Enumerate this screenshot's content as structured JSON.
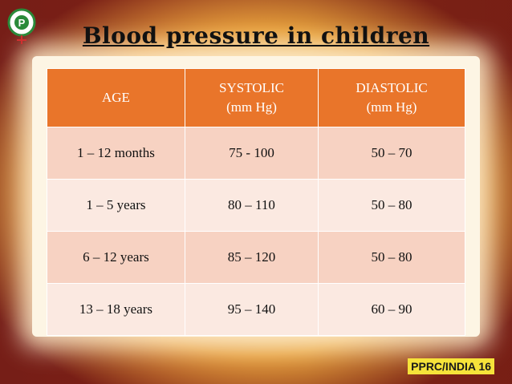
{
  "header": {
    "title": "Blood pressure in children"
  },
  "table": {
    "header": [
      [
        "AGE"
      ],
      [
        "SYSTOLIC",
        "(mm Hg)"
      ],
      [
        "DIASTOLIC",
        "(mm Hg)"
      ]
    ],
    "rows": [
      [
        "1 – 12 months",
        "75 - 100",
        "50 – 70"
      ],
      [
        "1 – 5 years",
        "80 – 110",
        "50 – 80"
      ],
      [
        "6 – 12 years",
        "85 – 120",
        "50 – 80"
      ],
      [
        "13 – 18 years",
        "95 – 140",
        "60 – 90"
      ]
    ]
  },
  "footer": {
    "text": "PPRC/INDIA",
    "page": "16"
  }
}
